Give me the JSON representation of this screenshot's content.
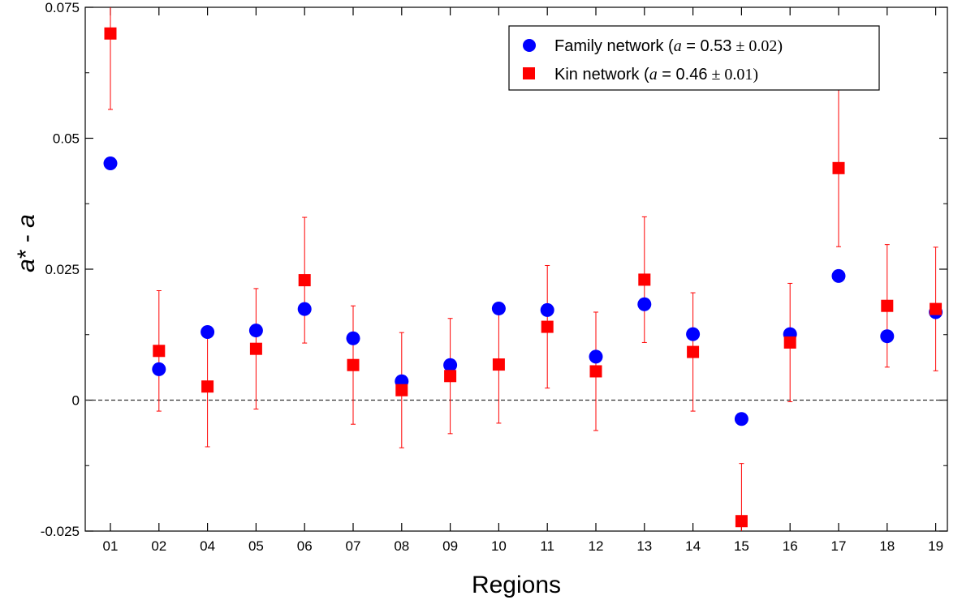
{
  "chart_data": {
    "type": "scatter",
    "title": "",
    "xlabel": "Regions",
    "ylabel": {
      "a1": "a",
      "mid": "* - ",
      "a2": "a"
    },
    "categories": [
      "01",
      "02",
      "04",
      "05",
      "06",
      "07",
      "08",
      "09",
      "10",
      "11",
      "12",
      "13",
      "14",
      "15",
      "16",
      "17",
      "18",
      "19"
    ],
    "ylim": [
      -0.025,
      0.075
    ],
    "yticks": [
      -0.025,
      0,
      0.025,
      0.05,
      0.075
    ],
    "ytick_labels": [
      "-0.025",
      "0",
      "0.025",
      "0.05",
      "0.075"
    ],
    "reference_line": 0,
    "grid": false,
    "legend_position": "top-right",
    "series": [
      {
        "name": "Family network",
        "legend": {
          "prefix": "Family network (",
          "var": "a",
          "eq": " = 0.53",
          "pm": " ± ",
          "err": "0.02",
          "suffix": ")"
        },
        "marker": "circle",
        "color": "#0000ff",
        "values": [
          0.0452,
          0.0059,
          0.013,
          0.0133,
          0.0174,
          0.0118,
          0.0036,
          0.0067,
          0.0175,
          0.0172,
          0.0083,
          0.0183,
          0.0126,
          -0.0036,
          0.0126,
          0.0237,
          0.0122,
          0.0168
        ]
      },
      {
        "name": "Kin network",
        "legend": {
          "prefix": "Kin network (",
          "var": "a",
          "eq": " = 0.46",
          "pm": " ± ",
          "err": "0.01",
          "suffix": ")"
        },
        "marker": "square",
        "color": "#ff0000",
        "values": [
          0.07,
          0.0094,
          0.0026,
          0.0098,
          0.0229,
          0.0067,
          0.0019,
          0.0046,
          0.0068,
          0.014,
          0.0055,
          0.023,
          0.0092,
          -0.0231,
          0.011,
          0.0443,
          0.018,
          0.0174
        ],
        "error": [
          0.0145,
          0.0115,
          0.0115,
          0.0115,
          0.012,
          0.0113,
          0.011,
          0.011,
          0.0112,
          0.0117,
          0.0113,
          0.012,
          0.0113,
          0.011,
          0.0113,
          0.015,
          0.0117,
          0.0118
        ]
      }
    ]
  }
}
